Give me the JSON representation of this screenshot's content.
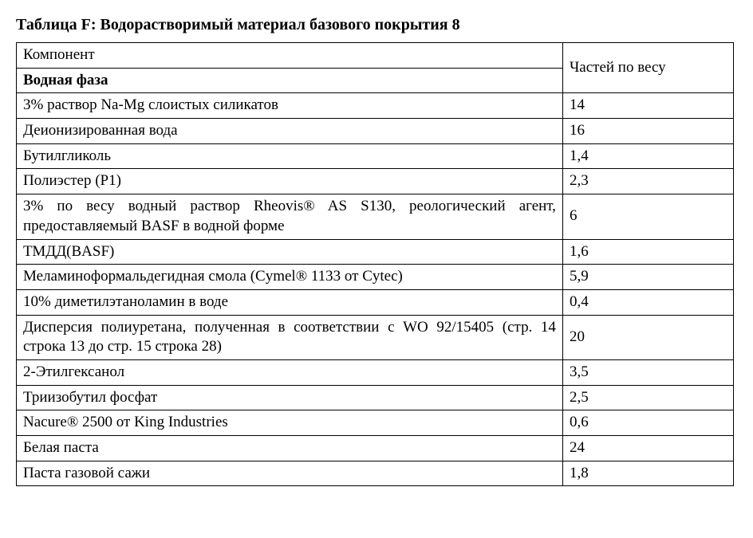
{
  "title": "Таблица F: Водорастворимый материал базового покрытия 8",
  "header_component": "Компонент",
  "header_parts": "Частей по весу",
  "section_aqueous": "Водная фаза",
  "rows": [
    {
      "comp": "3% раствор Na-Mg слоистых силикатов",
      "val": "14",
      "justify": false
    },
    {
      "comp": "Деионизированная вода",
      "val": "16",
      "justify": false
    },
    {
      "comp": "Бутилгликоль",
      "val": "1,4",
      "justify": false
    },
    {
      "comp": "Полиэстер (P1)",
      "val": "2,3",
      "justify": false
    },
    {
      "comp": "3% по весу водный раствор Rheovis® AS S130, реологический агент, предоставляемый BASF в водной форме",
      "val": "6",
      "justify": true
    },
    {
      "comp": "ТМДД(BASF)",
      "val": "1,6",
      "justify": false
    },
    {
      "comp": "Меламиноформальдегидная смола (Cymel® 1133 от Cytec)",
      "val": "5,9",
      "justify": true
    },
    {
      "comp": "10% диметилэтаноламин в воде",
      "val": "0,4",
      "justify": false
    },
    {
      "comp": "Дисперсия полиуретана, полученная в соответствии с WO 92/15405 (стр. 14 строка 13 до стр. 15 строка 28)",
      "val": "20",
      "justify": true
    },
    {
      "comp": "2-Этилгексанол",
      "val": "3,5",
      "justify": false
    },
    {
      "comp": "Триизобутил фосфат",
      "val": "2,5",
      "justify": false
    },
    {
      "comp": "Nacure® 2500 от King Industries",
      "val": "0,6",
      "justify": false
    },
    {
      "comp": "Белая паста",
      "val": "24",
      "justify": false
    },
    {
      "comp": "Паста газовой сажи",
      "val": "1,8",
      "justify": false
    }
  ]
}
